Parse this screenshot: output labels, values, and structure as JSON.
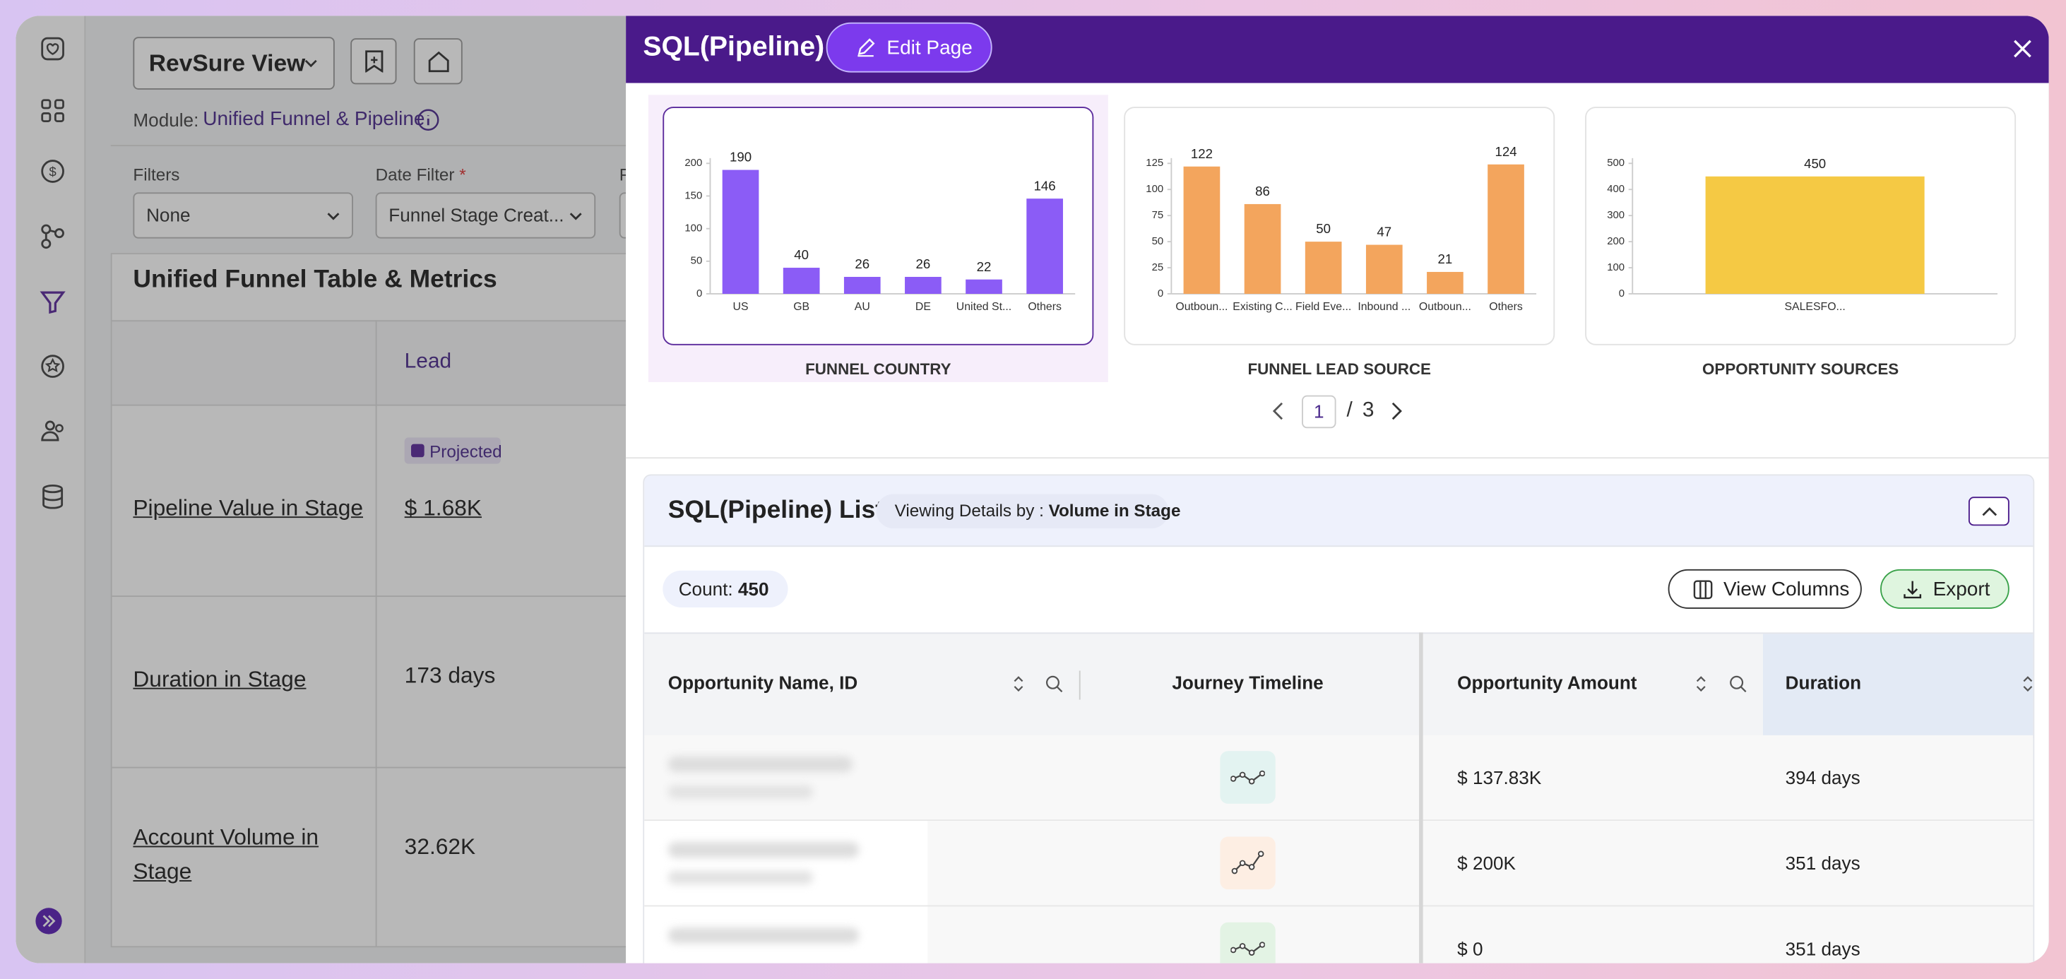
{
  "background": {
    "view_name": "RevSure View",
    "module_label": "Module:",
    "module_value": "Unified Funnel & Pipeline",
    "filters_label": "Filters",
    "filters_value": "None",
    "date_filter_label": "Date Filter",
    "date_required": "*",
    "date_filter_value": "Funnel Stage Creat...",
    "partial_label": "F",
    "section_title": "Unified Funnel Table & Metrics",
    "column": "Lead",
    "badge": "Projected",
    "rows": [
      {
        "label": "Pipeline Value in Stage",
        "value": "$ 1.68K"
      },
      {
        "label": "Duration in Stage",
        "value": "173 days"
      },
      {
        "label": "Account Volume in Stage",
        "value": "32.62K"
      }
    ]
  },
  "modal": {
    "title": "SQL(Pipeline)",
    "edit_button": "Edit Page",
    "charts": [
      {
        "type": "bar",
        "title": "FUNNEL COUNTRY",
        "color": "#8b5cf6",
        "categories": [
          "US",
          "GB",
          "AU",
          "DE",
          "United St...",
          "Others"
        ],
        "values": [
          190,
          40,
          26,
          26,
          22,
          146
        ],
        "ylim": [
          0,
          200
        ],
        "yticks": [
          0,
          50,
          100,
          150,
          200
        ]
      },
      {
        "type": "bar",
        "title": "FUNNEL LEAD SOURCE",
        "color": "#f3a55d",
        "categories": [
          "Outboun...",
          "Existing C...",
          "Field Eve...",
          "Inbound ...",
          "Outboun...",
          "Others"
        ],
        "values": [
          122,
          86,
          50,
          47,
          21,
          124
        ],
        "ylim": [
          0,
          125
        ],
        "yticks": [
          0,
          25,
          50,
          75,
          100,
          125
        ]
      },
      {
        "type": "bar",
        "title": "OPPORTUNITY SOURCES",
        "color": "#f5c944",
        "categories": [
          "SALESFO..."
        ],
        "values": [
          450
        ],
        "ylim": [
          0,
          500
        ],
        "yticks": [
          0,
          100,
          200,
          300,
          400,
          500
        ]
      }
    ],
    "pagination": {
      "current": 1,
      "separator": "/",
      "total": 3
    },
    "list": {
      "title": "SQL(Pipeline) List",
      "viewing_label": "Viewing Details by :",
      "viewing_value": "Volume in Stage",
      "count_label": "Count:",
      "count_value": 450,
      "view_columns": "View Columns",
      "export": "Export",
      "columns": [
        "Opportunity Name, ID",
        "Journey Timeline",
        "Opportunity Amount",
        "Duration"
      ],
      "rows": [
        {
          "amount": "$ 137.83K",
          "duration": "394 days"
        },
        {
          "amount": "$ 200K",
          "duration": "351 days"
        },
        {
          "amount": "$ 0",
          "duration": "351 days"
        }
      ]
    }
  }
}
